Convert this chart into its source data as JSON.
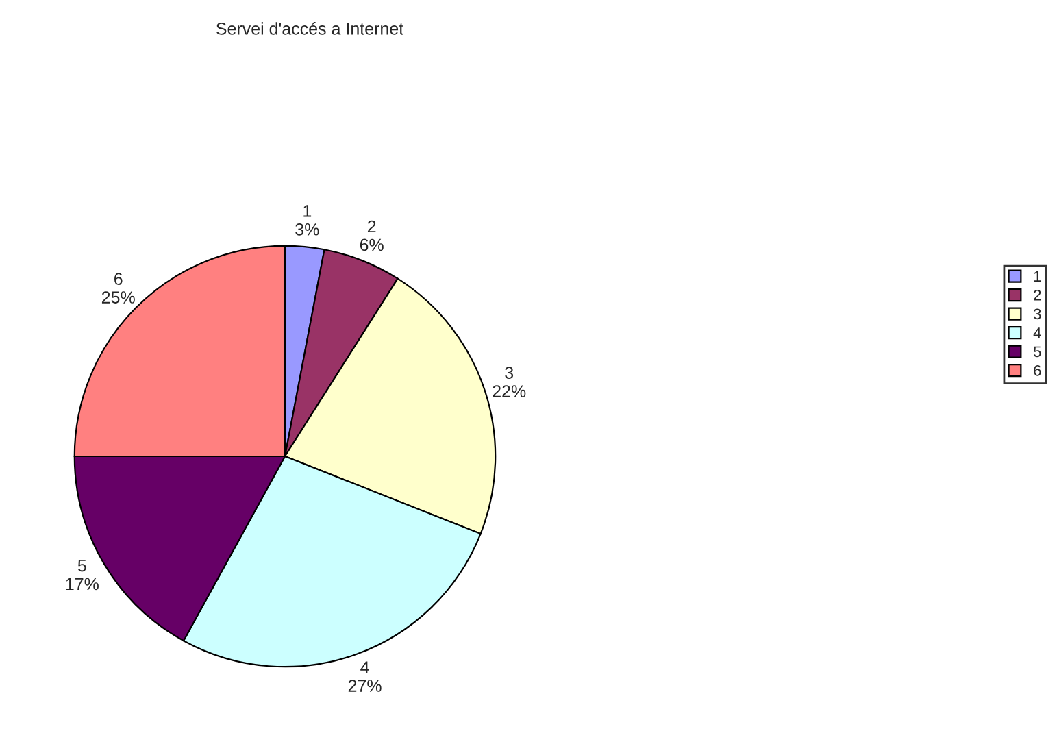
{
  "chart_data": {
    "type": "pie",
    "title": "Servei d'accés a Internet",
    "categories": [
      "1",
      "2",
      "3",
      "4",
      "5",
      "6"
    ],
    "values": [
      3,
      6,
      22,
      27,
      17,
      25
    ],
    "value_labels": [
      "3%",
      "6%",
      "22%",
      "27%",
      "17%",
      "25%"
    ],
    "colors": [
      "#9999ff",
      "#993366",
      "#ffffcc",
      "#ccffff",
      "#660066",
      "#ff8080"
    ],
    "legend": "right"
  }
}
